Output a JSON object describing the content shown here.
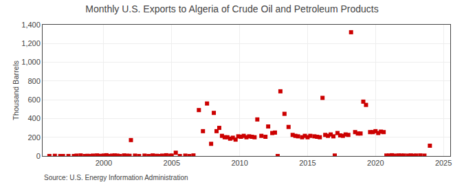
{
  "chart_data": {
    "type": "scatter",
    "title": "Monthly U.S. Exports to Algeria of Crude Oil and Petroleum Products",
    "ylabel": "Thousand Barrels",
    "annotations": [
      "Source: U.S. Energy Information Administration"
    ],
    "color": "#cc0000",
    "marker": "square",
    "grid": true,
    "xlim": [
      1995.5,
      2025.5
    ],
    "ylim": [
      0,
      1400
    ],
    "xticks": [
      2000,
      2005,
      2010,
      2015,
      2020,
      2025
    ],
    "yticks": [
      0,
      200,
      400,
      600,
      800,
      {
        "value": 1000,
        "label": "1,000"
      },
      {
        "value": 1200,
        "label": "1,200"
      },
      {
        "value": 1400,
        "label": "1,400"
      }
    ],
    "x": [
      1996.0,
      1996.4,
      1996.8,
      1997.0,
      1997.4,
      1997.8,
      1998.0,
      1998.3,
      1998.6,
      1998.8,
      1999.0,
      1999.2,
      1999.5,
      1999.7,
      1999.9,
      2000.0,
      2000.2,
      2000.4,
      2000.6,
      2000.8,
      2001.0,
      2001.2,
      2001.5,
      2001.7,
      2001.9,
      2002.0,
      2002.3,
      2002.6,
      2003.0,
      2003.3,
      2003.6,
      2003.9,
      2004.0,
      2004.3,
      2004.6,
      2004.9,
      2005.0,
      2005.3,
      2005.6,
      2006.0,
      2006.3,
      2006.6,
      2007.0,
      2007.3,
      2007.6,
      2007.9,
      2008.1,
      2008.3,
      2008.5,
      2008.7,
      2008.9,
      2009.1,
      2009.3,
      2009.5,
      2009.7,
      2009.9,
      2010.1,
      2010.3,
      2010.5,
      2010.7,
      2010.9,
      2011.1,
      2011.3,
      2011.6,
      2011.9,
      2012.1,
      2012.4,
      2012.6,
      2012.8,
      2013.0,
      2013.3,
      2013.6,
      2013.9,
      2014.1,
      2014.3,
      2014.6,
      2014.8,
      2015.0,
      2015.2,
      2015.5,
      2015.7,
      2015.9,
      2016.1,
      2016.3,
      2016.5,
      2016.7,
      2016.9,
      2017.0,
      2017.2,
      2017.4,
      2017.6,
      2017.8,
      2018.0,
      2018.2,
      2018.5,
      2018.7,
      2018.9,
      2019.1,
      2019.3,
      2019.6,
      2019.8,
      2020.0,
      2020.2,
      2020.4,
      2020.6,
      2020.8,
      2021.0,
      2021.2,
      2021.4,
      2021.7,
      2021.9,
      2022.1,
      2022.4,
      2022.6,
      2022.8,
      2023.0,
      2023.3,
      2023.6,
      2024.0
    ],
    "values": [
      0,
      2,
      0,
      0,
      0,
      0,
      4,
      6,
      0,
      2,
      0,
      4,
      6,
      2,
      0,
      5,
      8,
      0,
      4,
      6,
      4,
      0,
      6,
      3,
      2,
      170,
      4,
      0,
      4,
      0,
      6,
      2,
      0,
      4,
      8,
      3,
      4,
      35,
      0,
      4,
      0,
      6,
      490,
      265,
      560,
      130,
      460,
      265,
      300,
      215,
      200,
      200,
      185,
      195,
      175,
      210,
      205,
      215,
      200,
      210,
      205,
      200,
      390,
      215,
      205,
      315,
      245,
      250,
      0,
      690,
      450,
      310,
      225,
      215,
      210,
      200,
      215,
      200,
      215,
      210,
      205,
      200,
      620,
      225,
      215,
      230,
      210,
      5,
      245,
      220,
      215,
      230,
      225,
      1320,
      255,
      240,
      240,
      580,
      545,
      255,
      255,
      265,
      245,
      260,
      255,
      5,
      5,
      8,
      4,
      6,
      5,
      5,
      4,
      6,
      3,
      5,
      6,
      4,
      110
    ]
  }
}
